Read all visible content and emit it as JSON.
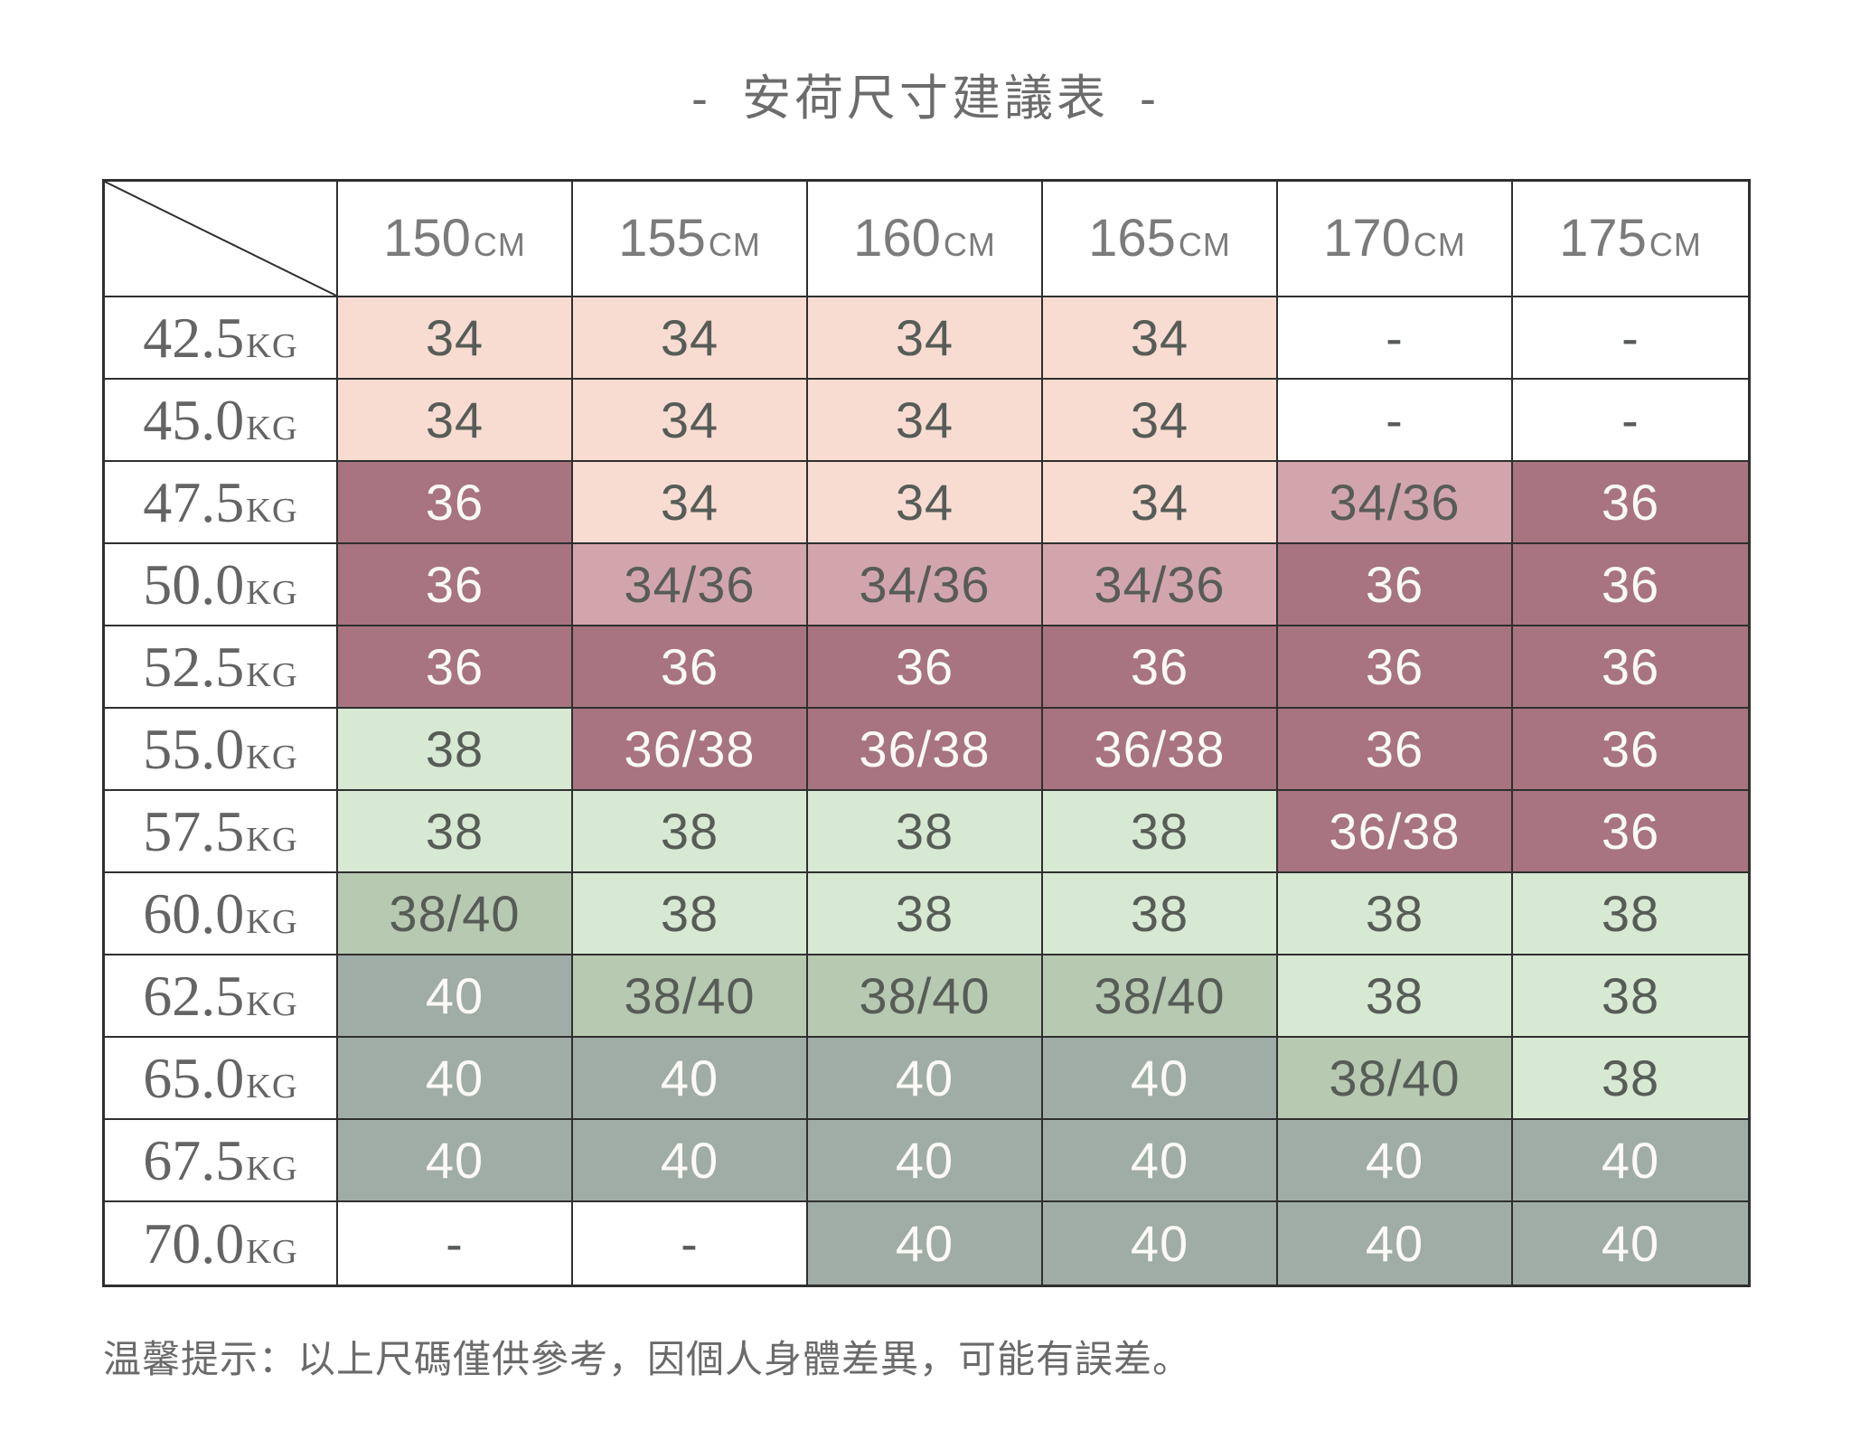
{
  "title": {
    "left_dash": "-",
    "text": "安荷尺寸建議表",
    "right_dash": "-"
  },
  "footer_note": "温馨提示：以上尺碼僅供參考，因個人身體差異，可能有誤差。",
  "table": {
    "col_headers": [
      {
        "num": "150",
        "unit": "CM"
      },
      {
        "num": "155",
        "unit": "CM"
      },
      {
        "num": "160",
        "unit": "CM"
      },
      {
        "num": "165",
        "unit": "CM"
      },
      {
        "num": "170",
        "unit": "CM"
      },
      {
        "num": "175",
        "unit": "CM"
      }
    ],
    "rows": [
      {
        "weight": {
          "num": "42.5",
          "unit": "KG"
        },
        "cells": [
          {
            "v": "34",
            "s": "pink-light"
          },
          {
            "v": "34",
            "s": "pink-light"
          },
          {
            "v": "34",
            "s": "pink-light"
          },
          {
            "v": "34",
            "s": "pink-light"
          },
          {
            "v": "-",
            "s": "white"
          },
          {
            "v": "-",
            "s": "white"
          }
        ]
      },
      {
        "weight": {
          "num": "45.0",
          "unit": "KG"
        },
        "cells": [
          {
            "v": "34",
            "s": "pink-light"
          },
          {
            "v": "34",
            "s": "pink-light"
          },
          {
            "v": "34",
            "s": "pink-light"
          },
          {
            "v": "34",
            "s": "pink-light"
          },
          {
            "v": "-",
            "s": "white"
          },
          {
            "v": "-",
            "s": "white"
          }
        ]
      },
      {
        "weight": {
          "num": "47.5",
          "unit": "KG"
        },
        "cells": [
          {
            "v": "36",
            "s": "mauve"
          },
          {
            "v": "34",
            "s": "pink-light"
          },
          {
            "v": "34",
            "s": "pink-light"
          },
          {
            "v": "34",
            "s": "pink-light"
          },
          {
            "v": "34/36",
            "s": "pink-mid"
          },
          {
            "v": "36",
            "s": "mauve"
          }
        ]
      },
      {
        "weight": {
          "num": "50.0",
          "unit": "KG"
        },
        "cells": [
          {
            "v": "36",
            "s": "mauve"
          },
          {
            "v": "34/36",
            "s": "pink-mid"
          },
          {
            "v": "34/36",
            "s": "pink-mid"
          },
          {
            "v": "34/36",
            "s": "pink-mid"
          },
          {
            "v": "36",
            "s": "mauve"
          },
          {
            "v": "36",
            "s": "mauve"
          }
        ]
      },
      {
        "weight": {
          "num": "52.5",
          "unit": "KG"
        },
        "cells": [
          {
            "v": "36",
            "s": "mauve"
          },
          {
            "v": "36",
            "s": "mauve"
          },
          {
            "v": "36",
            "s": "mauve"
          },
          {
            "v": "36",
            "s": "mauve"
          },
          {
            "v": "36",
            "s": "mauve"
          },
          {
            "v": "36",
            "s": "mauve"
          }
        ]
      },
      {
        "weight": {
          "num": "55.0",
          "unit": "KG"
        },
        "cells": [
          {
            "v": "38",
            "s": "green-light"
          },
          {
            "v": "36/38",
            "s": "mauve"
          },
          {
            "v": "36/38",
            "s": "mauve"
          },
          {
            "v": "36/38",
            "s": "mauve"
          },
          {
            "v": "36",
            "s": "mauve"
          },
          {
            "v": "36",
            "s": "mauve"
          }
        ]
      },
      {
        "weight": {
          "num": "57.5",
          "unit": "KG"
        },
        "cells": [
          {
            "v": "38",
            "s": "green-light"
          },
          {
            "v": "38",
            "s": "green-light"
          },
          {
            "v": "38",
            "s": "green-light"
          },
          {
            "v": "38",
            "s": "green-light"
          },
          {
            "v": "36/38",
            "s": "mauve"
          },
          {
            "v": "36",
            "s": "mauve"
          }
        ]
      },
      {
        "weight": {
          "num": "60.0",
          "unit": "KG"
        },
        "cells": [
          {
            "v": "38/40",
            "s": "green-mid"
          },
          {
            "v": "38",
            "s": "green-light"
          },
          {
            "v": "38",
            "s": "green-light"
          },
          {
            "v": "38",
            "s": "green-light"
          },
          {
            "v": "38",
            "s": "green-light"
          },
          {
            "v": "38",
            "s": "green-light"
          }
        ]
      },
      {
        "weight": {
          "num": "62.5",
          "unit": "KG"
        },
        "cells": [
          {
            "v": "40",
            "s": "green-gray"
          },
          {
            "v": "38/40",
            "s": "green-mid"
          },
          {
            "v": "38/40",
            "s": "green-mid"
          },
          {
            "v": "38/40",
            "s": "green-mid"
          },
          {
            "v": "38",
            "s": "green-light"
          },
          {
            "v": "38",
            "s": "green-light"
          }
        ]
      },
      {
        "weight": {
          "num": "65.0",
          "unit": "KG"
        },
        "cells": [
          {
            "v": "40",
            "s": "green-gray"
          },
          {
            "v": "40",
            "s": "green-gray"
          },
          {
            "v": "40",
            "s": "green-gray"
          },
          {
            "v": "40",
            "s": "green-gray"
          },
          {
            "v": "38/40",
            "s": "green-mid"
          },
          {
            "v": "38",
            "s": "green-light"
          }
        ]
      },
      {
        "weight": {
          "num": "67.5",
          "unit": "KG"
        },
        "cells": [
          {
            "v": "40",
            "s": "green-gray"
          },
          {
            "v": "40",
            "s": "green-gray"
          },
          {
            "v": "40",
            "s": "green-gray"
          },
          {
            "v": "40",
            "s": "green-gray"
          },
          {
            "v": "40",
            "s": "green-gray"
          },
          {
            "v": "40",
            "s": "green-gray"
          }
        ]
      },
      {
        "weight": {
          "num": "70.0",
          "unit": "KG"
        },
        "cells": [
          {
            "v": "-",
            "s": "white"
          },
          {
            "v": "-",
            "s": "white"
          },
          {
            "v": "40",
            "s": "green-gray"
          },
          {
            "v": "40",
            "s": "green-gray"
          },
          {
            "v": "40",
            "s": "green-gray"
          },
          {
            "v": "40",
            "s": "green-gray"
          }
        ]
      }
    ]
  },
  "colors": {
    "band_pink_light": "#f8dcd2",
    "band_pink_mid": "#d2a5ac",
    "band_mauve": "#a7747f",
    "band_green_light": "#d7e8d3",
    "band_green_mid": "#b7c9b1",
    "band_green_gray": "#9fada6",
    "border": "#2f2f2f",
    "cell_text_dark": "#575c57",
    "cell_text_light": "#fbfaf6",
    "size_band_legend": {
      "34": "#f8dcd2",
      "34/36": "#d2a5ac",
      "36": "#a7747f",
      "38": "#d7e8d3",
      "38/40": "#b7c9b1",
      "40": "#9fada6"
    }
  },
  "chart_data": {
    "type": "table",
    "title": "安荷尺寸建議表",
    "columns_height_cm": [
      150,
      155,
      160,
      165,
      170,
      175
    ],
    "rows_weight_kg": [
      42.5,
      45.0,
      47.5,
      50.0,
      52.5,
      55.0,
      57.5,
      60.0,
      62.5,
      65.0,
      67.5,
      70.0
    ],
    "values": [
      [
        "34",
        "34",
        "34",
        "34",
        "-",
        "-"
      ],
      [
        "34",
        "34",
        "34",
        "34",
        "-",
        "-"
      ],
      [
        "36",
        "34",
        "34",
        "34",
        "34/36",
        "36"
      ],
      [
        "36",
        "34/36",
        "34/36",
        "34/36",
        "36",
        "36"
      ],
      [
        "36",
        "36",
        "36",
        "36",
        "36",
        "36"
      ],
      [
        "38",
        "36/38",
        "36/38",
        "36/38",
        "36",
        "36"
      ],
      [
        "38",
        "38",
        "38",
        "38",
        "36/38",
        "36"
      ],
      [
        "38/40",
        "38",
        "38",
        "38",
        "38",
        "38"
      ],
      [
        "40",
        "38/40",
        "38/40",
        "38/40",
        "38",
        "38"
      ],
      [
        "40",
        "40",
        "40",
        "40",
        "38/40",
        "38"
      ],
      [
        "40",
        "40",
        "40",
        "40",
        "40",
        "40"
      ],
      [
        "-",
        "-",
        "40",
        "40",
        "40",
        "40"
      ]
    ],
    "note": "温馨提示：以上尺碼僅供參考，因個人身體差異，可能有誤差。"
  }
}
